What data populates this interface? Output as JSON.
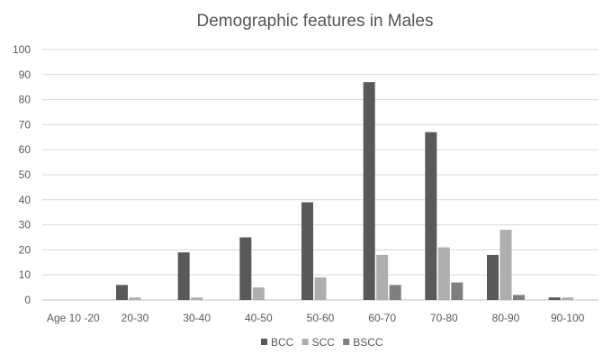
{
  "chart_data": {
    "type": "bar",
    "title": "Demographic features in Males",
    "xlabel": "",
    "ylabel": "",
    "ylim": [
      0,
      100
    ],
    "yticks": [
      0,
      10,
      20,
      30,
      40,
      50,
      60,
      70,
      80,
      90,
      100
    ],
    "grid": true,
    "legend_position": "bottom",
    "categories": [
      "Age 10 -20",
      "20-30",
      "30-40",
      "40-50",
      "50-60",
      "60-70",
      "70-80",
      "80-90",
      "90-100"
    ],
    "series": [
      {
        "name": "BCC",
        "color": "#595959",
        "values": [
          0,
          6,
          19,
          25,
          39,
          87,
          67,
          18,
          1
        ]
      },
      {
        "name": "SCC",
        "color": "#aeaeae",
        "values": [
          0,
          1,
          1,
          5,
          9,
          18,
          21,
          28,
          1
        ]
      },
      {
        "name": "BSCC",
        "color": "#7f7f7f",
        "values": [
          0,
          0,
          0,
          0,
          0,
          6,
          7,
          2,
          0
        ]
      }
    ]
  }
}
